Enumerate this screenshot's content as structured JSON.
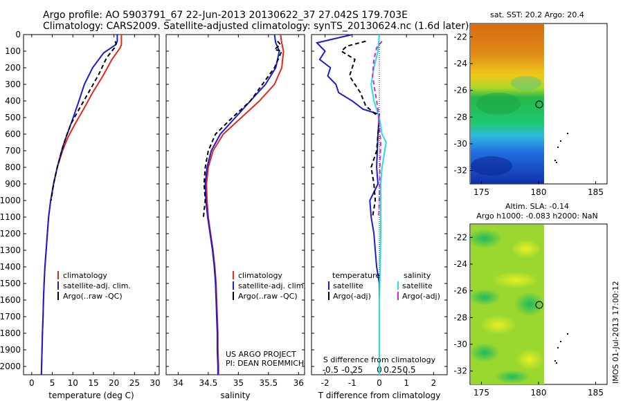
{
  "header": {
    "title_line1": "Argo profile: AO 5903791_67 22-Jun-2013 20130622_37 27.042S 179.703E",
    "title_line2": "Climatology: CARS2009. Satellite-adjusted climatology: synTS_20130624.nc (1.6d later)"
  },
  "colors": {
    "climatology": "#e8251b",
    "satellite": "#1a1ad6",
    "argo": "#000000",
    "sal_satellite": "#22e0e0",
    "sal_argo": "#e020d8"
  },
  "chart_data": [
    {
      "type": "line",
      "name": "temperature-profile",
      "xlabel": "temperature (deg C)",
      "ylabel": "",
      "xlim": [
        -2,
        31
      ],
      "ylim": [
        2050,
        0
      ],
      "xticks": [
        0,
        5,
        10,
        15,
        20,
        25,
        30
      ],
      "yticks": [
        0,
        100,
        200,
        300,
        400,
        500,
        600,
        700,
        800,
        900,
        1000,
        1100,
        1200,
        1300,
        1400,
        1500,
        1600,
        1700,
        1800,
        1900,
        2000
      ],
      "legend": [
        "climatology",
        "satellite-adj. clim.",
        "Argo(..raw -QC)"
      ],
      "legend_position": "lower-right",
      "series": [
        {
          "name": "climatology",
          "color": "#e8251b",
          "dash": "",
          "points": [
            [
              21.8,
              0
            ],
            [
              21.8,
              60
            ],
            [
              21.5,
              80
            ],
            [
              19.5,
              150
            ],
            [
              17.3,
              250
            ],
            [
              14.8,
              350
            ],
            [
              12.6,
              450
            ],
            [
              10.5,
              540
            ],
            [
              8.8,
              620
            ],
            [
              7.5,
              700
            ],
            [
              6.2,
              800
            ],
            [
              5.3,
              900
            ],
            [
              4.6,
              1000
            ],
            [
              4.1,
              1100
            ],
            [
              3.8,
              1200
            ],
            [
              3.5,
              1300
            ],
            [
              3.2,
              1400
            ],
            [
              3.0,
              1500
            ],
            [
              2.85,
              1600
            ],
            [
              2.75,
              1700
            ],
            [
              2.6,
              1800
            ],
            [
              2.5,
              1900
            ],
            [
              2.4,
              2000
            ],
            [
              2.35,
              2050
            ]
          ]
        },
        {
          "name": "satellite-adj. clim.",
          "color": "#1a1ad6",
          "dash": "",
          "points": [
            [
              20.8,
              0
            ],
            [
              20.8,
              40
            ],
            [
              20.5,
              60
            ],
            [
              17.5,
              110
            ],
            [
              14.8,
              200
            ],
            [
              12.8,
              300
            ],
            [
              11.2,
              420
            ],
            [
              9.8,
              520
            ],
            [
              8.6,
              600
            ],
            [
              7.5,
              680
            ],
            [
              6.2,
              800
            ],
            [
              5.3,
              900
            ],
            [
              4.6,
              1000
            ],
            [
              4.1,
              1100
            ],
            [
              3.8,
              1200
            ],
            [
              3.5,
              1300
            ],
            [
              3.2,
              1400
            ],
            [
              3.0,
              1500
            ],
            [
              2.85,
              1600
            ],
            [
              2.75,
              1700
            ],
            [
              2.6,
              1800
            ],
            [
              2.5,
              1900
            ],
            [
              2.4,
              2000
            ],
            [
              2.35,
              2050
            ]
          ]
        },
        {
          "name": "Argo(..raw -QC)",
          "color": "#000000",
          "dash": "6,4",
          "points": [
            [
              20.3,
              40
            ],
            [
              20.5,
              55
            ],
            [
              20.1,
              80
            ],
            [
              18.2,
              140
            ],
            [
              16.3,
              240
            ],
            [
              13.8,
              350
            ],
            [
              11.5,
              450
            ],
            [
              9.5,
              540
            ],
            [
              8.3,
              620
            ],
            [
              7.3,
              700
            ],
            [
              6.2,
              800
            ],
            [
              5.3,
              900
            ],
            [
              4.7,
              1000
            ]
          ]
        }
      ]
    },
    {
      "type": "line",
      "name": "salinity-profile",
      "xlabel": "salinity",
      "xlim": [
        33.8,
        36.1
      ],
      "ylim": [
        2050,
        0
      ],
      "xticks": [
        34,
        34.5,
        35,
        35.5,
        36
      ],
      "xticklabels": [
        "34",
        "34.5",
        "35",
        "35.5",
        "36"
      ],
      "legend": [
        "climatology",
        "satellite-adj. clim.",
        "Argo(..raw -QC)"
      ],
      "legend_position": "lower-right",
      "annotation": [
        "US ARGO PROJECT",
        "PI: DEAN ROEMMICH"
      ],
      "series": [
        {
          "name": "climatology",
          "color": "#e8251b",
          "dash": "",
          "points": [
            [
              35.7,
              0
            ],
            [
              35.72,
              50
            ],
            [
              35.75,
              100
            ],
            [
              35.72,
              200
            ],
            [
              35.6,
              300
            ],
            [
              35.35,
              400
            ],
            [
              35.05,
              500
            ],
            [
              34.75,
              600
            ],
            [
              34.58,
              700
            ],
            [
              34.5,
              800
            ],
            [
              34.47,
              900
            ],
            [
              34.48,
              1000
            ],
            [
              34.5,
              1100
            ],
            [
              34.54,
              1200
            ],
            [
              34.58,
              1300
            ],
            [
              34.61,
              1400
            ],
            [
              34.63,
              1500
            ],
            [
              34.64,
              1600
            ],
            [
              34.65,
              1700
            ],
            [
              34.66,
              1800
            ],
            [
              34.66,
              1900
            ],
            [
              34.67,
              2000
            ],
            [
              34.67,
              2050
            ]
          ]
        },
        {
          "name": "satellite-adj. clim.",
          "color": "#1a1ad6",
          "dash": "",
          "points": [
            [
              35.6,
              0
            ],
            [
              35.62,
              50
            ],
            [
              35.68,
              100
            ],
            [
              35.62,
              200
            ],
            [
              35.45,
              300
            ],
            [
              35.2,
              400
            ],
            [
              34.95,
              500
            ],
            [
              34.7,
              600
            ],
            [
              34.55,
              700
            ],
            [
              34.48,
              800
            ],
            [
              34.45,
              900
            ],
            [
              34.46,
              1000
            ],
            [
              34.49,
              1100
            ],
            [
              34.53,
              1200
            ],
            [
              34.57,
              1300
            ],
            [
              34.6,
              1400
            ],
            [
              34.62,
              1500
            ],
            [
              34.63,
              1600
            ],
            [
              34.64,
              1700
            ],
            [
              34.65,
              1800
            ],
            [
              34.65,
              1900
            ],
            [
              34.66,
              2000
            ],
            [
              34.66,
              2050
            ]
          ]
        },
        {
          "name": "Argo(..raw -QC)",
          "color": "#000000",
          "dash": "6,4",
          "points": [
            [
              35.65,
              40
            ],
            [
              35.7,
              60
            ],
            [
              35.6,
              90
            ],
            [
              35.72,
              100
            ],
            [
              35.6,
              200
            ],
            [
              35.4,
              300
            ],
            [
              35.2,
              400
            ],
            [
              34.9,
              500
            ],
            [
              34.62,
              600
            ],
            [
              34.5,
              700
            ],
            [
              34.45,
              800
            ],
            [
              34.43,
              900
            ],
            [
              34.45,
              1000
            ],
            [
              34.42,
              1100
            ]
          ]
        }
      ]
    },
    {
      "type": "line",
      "name": "difference-profile",
      "xlabel": "T difference from climatology",
      "xlabel_top": "S difference from climatology",
      "xlim": [
        -2.5,
        2.5
      ],
      "ylim": [
        2050,
        0
      ],
      "xticks_T": [
        -2,
        -1,
        0,
        1,
        2
      ],
      "xticklabels_S": [
        "-0.5",
        "-0.25",
        "0",
        "0.25",
        "0.5"
      ],
      "xticks_S_at_T": [
        -1.8,
        -1.0,
        0,
        0.5,
        1.1
      ],
      "legend_temperature_title": "temperature",
      "legend_salinity_title": "salinity",
      "legend_temperature": [
        "satellite",
        "Argo(-adj)"
      ],
      "legend_salinity": [
        "satellite",
        "Argo(-adj)"
      ],
      "series": [
        {
          "name": "temperature satellite",
          "color": "#1a1ad6",
          "dash": "",
          "points": [
            [
              -1.0,
              0
            ],
            [
              -2.3,
              50
            ],
            [
              -2.0,
              100
            ],
            [
              -2.2,
              150
            ],
            [
              -1.8,
              200
            ],
            [
              -1.9,
              250
            ],
            [
              -1.6,
              300
            ],
            [
              -1.5,
              350
            ],
            [
              -1.0,
              400
            ],
            [
              -0.6,
              450
            ],
            [
              0,
              480
            ],
            [
              -0.05,
              600
            ],
            [
              -0.1,
              800
            ],
            [
              -0.05,
              900
            ],
            [
              -0.35,
              1000
            ],
            [
              -0.3,
              1100
            ],
            [
              -0.2,
              1200
            ],
            [
              -0.15,
              1300
            ],
            [
              -0.1,
              1400
            ],
            [
              0,
              1500
            ],
            [
              0,
              2050
            ]
          ]
        },
        {
          "name": "temperature Argo(-adj)",
          "color": "#000000",
          "dash": "6,4",
          "points": [
            [
              -0.5,
              40
            ],
            [
              -1.2,
              70
            ],
            [
              -1.4,
              100
            ],
            [
              -0.9,
              150
            ],
            [
              -1.1,
              250
            ],
            [
              -0.7,
              350
            ],
            [
              -0.5,
              430
            ],
            [
              0,
              500
            ],
            [
              -0.1,
              700
            ],
            [
              -0.3,
              800
            ],
            [
              -0.2,
              900
            ],
            [
              -0.15,
              1000
            ],
            [
              -0.25,
              1100
            ]
          ]
        },
        {
          "name": "salinity satellite",
          "color": "#22e0e0",
          "dash": "",
          "points": [
            [
              0,
              0
            ],
            [
              -0.05,
              100
            ],
            [
              -0.2,
              200
            ],
            [
              -0.3,
              300
            ],
            [
              -0.2,
              400
            ],
            [
              0,
              500
            ],
            [
              0.1,
              600
            ],
            [
              0.25,
              650
            ],
            [
              0.1,
              800
            ],
            [
              0.05,
              900
            ],
            [
              0.05,
              1000
            ],
            [
              0.05,
              1200
            ],
            [
              0.03,
              1400
            ],
            [
              0,
              1600
            ],
            [
              0,
              2050
            ]
          ]
        },
        {
          "name": "salinity Argo(-adj)",
          "color": "#e020d8",
          "dash": "6,4",
          "points": [
            [
              0.1,
              40
            ],
            [
              -0.1,
              80
            ],
            [
              -0.2,
              150
            ],
            [
              -0.25,
              250
            ],
            [
              -0.15,
              350
            ],
            [
              -0.05,
              450
            ],
            [
              0,
              550
            ],
            [
              0.05,
              650
            ],
            [
              0.02,
              800
            ],
            [
              0,
              1000
            ],
            [
              -0.02,
              1100
            ]
          ]
        }
      ]
    },
    {
      "type": "heatmap",
      "name": "sst-map",
      "title": "sat. SST: 20.2  Argo: 20.4",
      "xticks": [
        "175",
        "180",
        "185"
      ],
      "yticks": [
        "-22",
        "-24",
        "-26",
        "-28",
        "-30",
        "-32"
      ],
      "xlim": [
        174,
        186
      ],
      "ylim": [
        -33,
        -21
      ],
      "profile_position": [
        179.7,
        -27.0
      ]
    },
    {
      "type": "heatmap",
      "name": "sla-map",
      "title_line1": "Altim. SLA: -0.14",
      "title_line2": "Argo h1000: -0.083 h2000: NaN",
      "xticks": [
        "175",
        "180",
        "185"
      ],
      "yticks": [
        "-22",
        "-24",
        "-26",
        "-28",
        "-30",
        "-32"
      ],
      "xlim": [
        174,
        186
      ],
      "ylim": [
        -33,
        -21
      ],
      "profile_position": [
        179.7,
        -27.0
      ]
    }
  ],
  "footer": {
    "side_label": "IMOS 01-Jul-2013 17:00:12"
  }
}
